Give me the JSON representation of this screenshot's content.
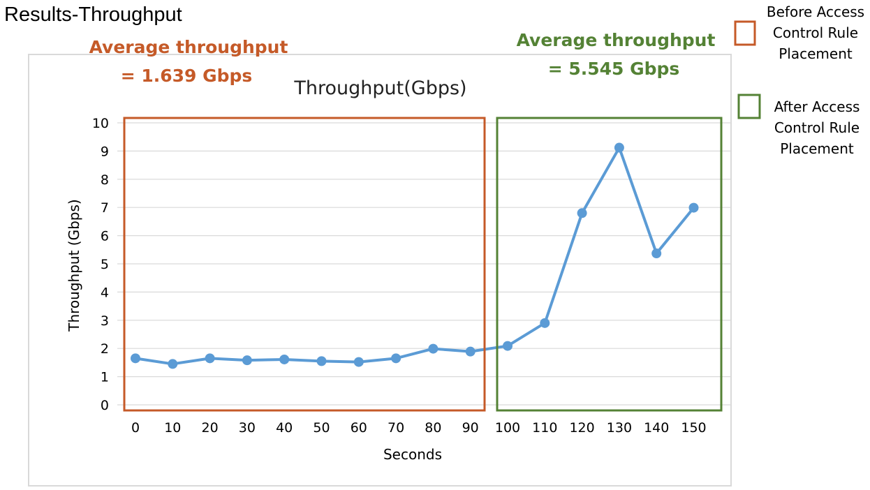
{
  "slide_title": "Results-Throughput",
  "annotations": {
    "before": {
      "line1": "Average throughput",
      "line2": "= 1.639 Gbps",
      "color": "#C55A28"
    },
    "after": {
      "line1": "Average throughput",
      "line2": "= 5.545 Gbps",
      "color": "#548235"
    }
  },
  "legend": {
    "before_lines": [
      "Before  Access",
      "Control Rule",
      "Placement"
    ],
    "after_lines": [
      "After Access",
      "Control Rule",
      "Placement"
    ]
  },
  "colors": {
    "series": "#5B9BD5",
    "before_box": "#C55A28",
    "after_box": "#548235",
    "grid": "#D9D9D9",
    "frame": "#D9D9D9"
  },
  "chart_data": {
    "type": "line",
    "title": "Throughput(Gbps)",
    "xlabel": "Seconds",
    "ylabel": "Throughput (Gbps)",
    "x": [
      0,
      10,
      20,
      30,
      40,
      50,
      60,
      70,
      80,
      90,
      100,
      110,
      120,
      130,
      140,
      150
    ],
    "categories": [
      "0",
      "10",
      "20",
      "30",
      "40",
      "50",
      "60",
      "70",
      "80",
      "90",
      "100",
      "110",
      "120",
      "130",
      "140",
      "150"
    ],
    "series": [
      {
        "values": [
          1.65,
          1.45,
          1.65,
          1.58,
          1.61,
          1.55,
          1.52,
          1.65,
          1.99,
          1.89,
          2.09,
          2.9,
          6.8,
          9.12,
          5.37,
          6.99
        ]
      }
    ],
    "ylim": [
      0,
      10
    ],
    "yticks": [
      "0",
      "1",
      "2",
      "3",
      "4",
      "5",
      "6",
      "7",
      "8",
      "9",
      "10"
    ],
    "grid": true,
    "legend": "right"
  }
}
